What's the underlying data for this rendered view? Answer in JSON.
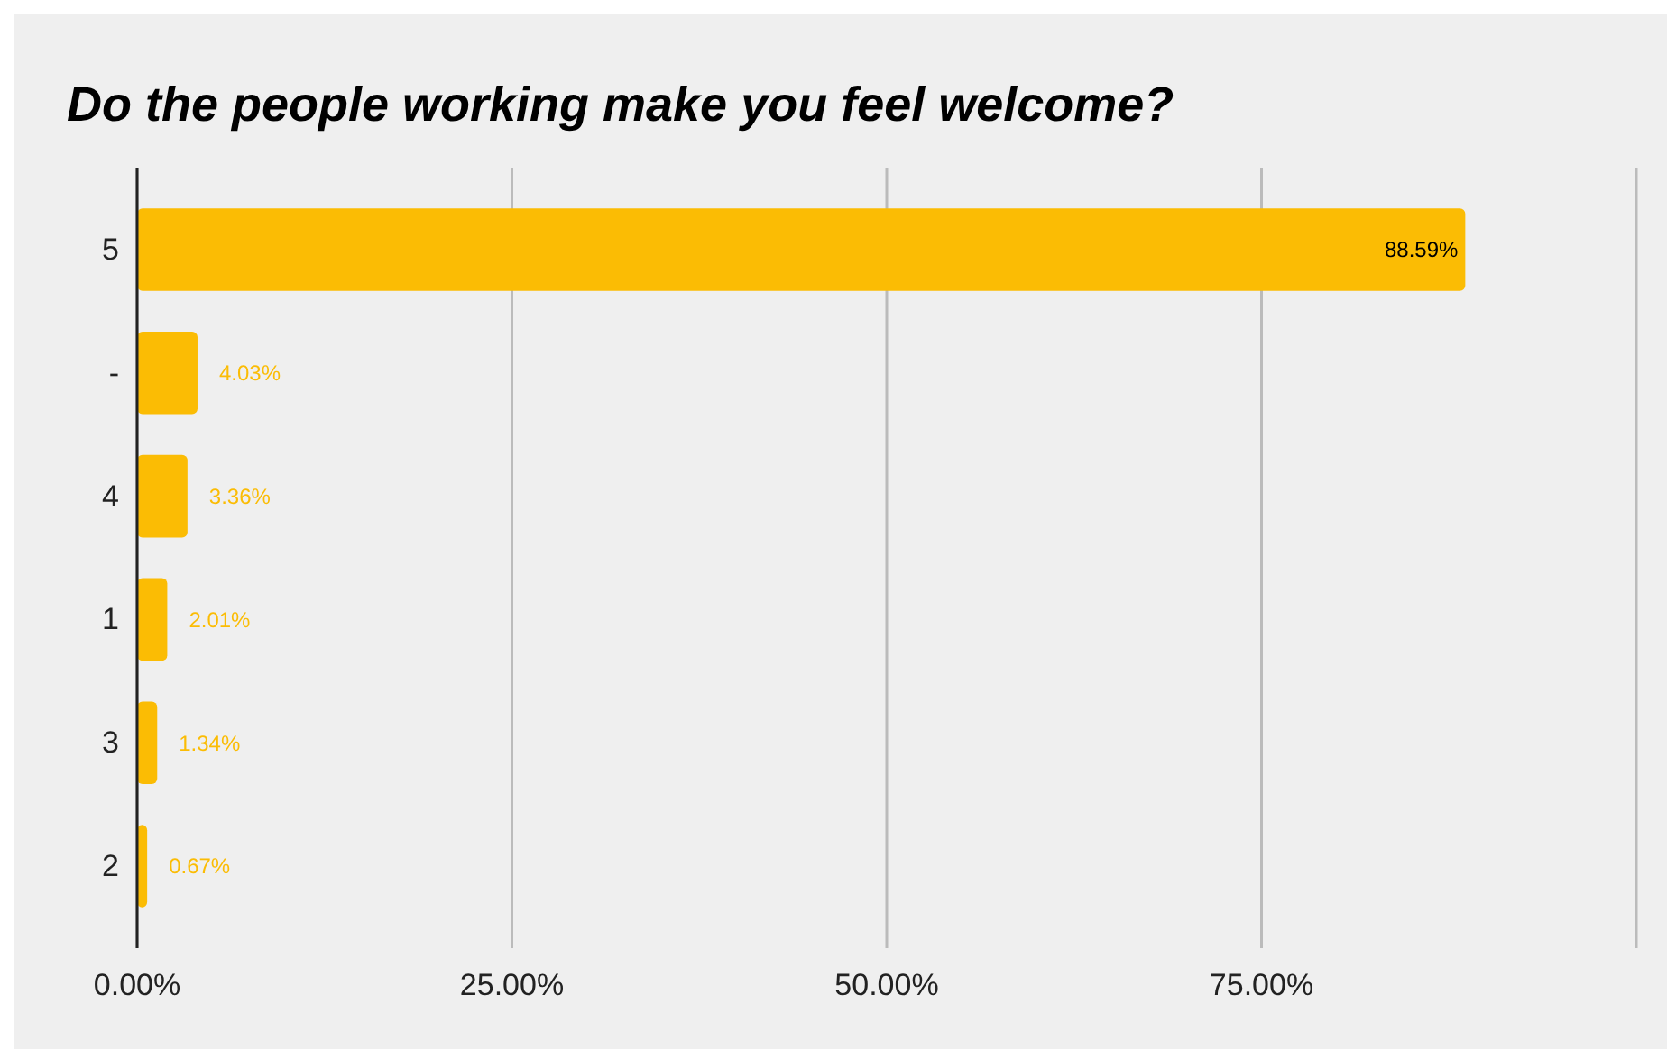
{
  "chart_data": {
    "type": "bar",
    "orientation": "horizontal",
    "title": "Do the people working make you feel welcome?",
    "categories": [
      "5",
      "-",
      "4",
      "1",
      "3",
      "2"
    ],
    "values": [
      88.59,
      4.03,
      3.36,
      2.01,
      1.34,
      0.67
    ],
    "value_labels": [
      "88.59%",
      "4.03%",
      "3.36%",
      "2.01%",
      "1.34%",
      "0.67%"
    ],
    "color": "#fbbc04",
    "xlim": [
      0,
      100
    ],
    "xticks": [
      {
        "value": 0,
        "label": "0.00%"
      },
      {
        "value": 25,
        "label": "25.00%"
      },
      {
        "value": 50,
        "label": "50.00%"
      },
      {
        "value": 75,
        "label": "75.00%"
      },
      {
        "value": 100,
        "label": null
      }
    ],
    "grid": "x"
  }
}
